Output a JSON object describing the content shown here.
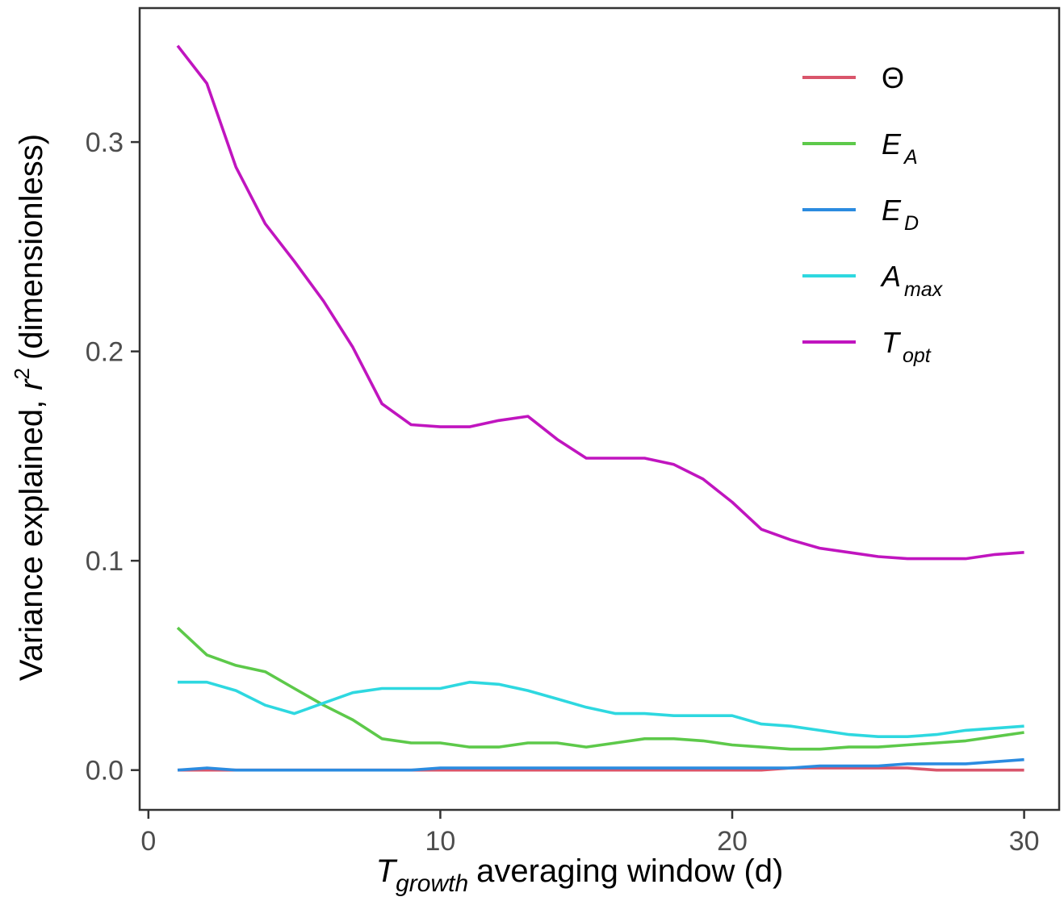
{
  "chart_data": {
    "type": "line",
    "title": "",
    "xlabel": {
      "main": "T",
      "subscript": "growth",
      "rest": "averaging window (d)"
    },
    "ylabel": {
      "before": "Variance explained,",
      "symbol": "r",
      "superscript": "2",
      "after": "(dimensionless)"
    },
    "xlim": [
      -0.3,
      31.2
    ],
    "ylim": [
      -0.019,
      0.364
    ],
    "x_ticks": [
      {
        "value": 0,
        "label": "0"
      },
      {
        "value": 10,
        "label": "10"
      },
      {
        "value": 20,
        "label": "20"
      },
      {
        "value": 30,
        "label": "30"
      }
    ],
    "y_ticks": [
      {
        "value": 0.0,
        "label": "0.0"
      },
      {
        "value": 0.1,
        "label": "0.1"
      },
      {
        "value": 0.2,
        "label": "0.2"
      },
      {
        "value": 0.3,
        "label": "0.3"
      }
    ],
    "grid": false,
    "legend_position": "top-right",
    "x": [
      1,
      2,
      3,
      4,
      5,
      6,
      7,
      8,
      9,
      10,
      11,
      12,
      13,
      14,
      15,
      16,
      17,
      18,
      19,
      20,
      21,
      22,
      23,
      24,
      25,
      26,
      27,
      28,
      29,
      30
    ],
    "series": [
      {
        "name": "Θ",
        "label_main": "Θ",
        "label_sub": "",
        "italic": false,
        "color": "#d9556b",
        "values": [
          0.0,
          0.0,
          0.0,
          0.0,
          0.0,
          0.0,
          0.0,
          0.0,
          0.0,
          0.0,
          0.0,
          0.0,
          0.0,
          0.0,
          0.0,
          0.0,
          0.0,
          0.0,
          0.0,
          0.0,
          0.0,
          0.001,
          0.001,
          0.001,
          0.001,
          0.001,
          0.0,
          0.0,
          0.0,
          0.0
        ]
      },
      {
        "name": "E_A",
        "label_main": "E",
        "label_sub": "A",
        "italic": true,
        "color": "#5dc94a",
        "values": [
          0.068,
          0.055,
          0.05,
          0.047,
          0.039,
          0.031,
          0.024,
          0.015,
          0.013,
          0.013,
          0.011,
          0.011,
          0.013,
          0.013,
          0.011,
          0.013,
          0.015,
          0.015,
          0.014,
          0.012,
          0.011,
          0.01,
          0.01,
          0.011,
          0.011,
          0.012,
          0.013,
          0.014,
          0.016,
          0.018
        ]
      },
      {
        "name": "E_D",
        "label_main": "E",
        "label_sub": "D",
        "italic": true,
        "color": "#2b8be0",
        "values": [
          0.0,
          0.001,
          0.0,
          0.0,
          0.0,
          0.0,
          0.0,
          0.0,
          0.0,
          0.001,
          0.001,
          0.001,
          0.001,
          0.001,
          0.001,
          0.001,
          0.001,
          0.001,
          0.001,
          0.001,
          0.001,
          0.001,
          0.002,
          0.002,
          0.002,
          0.003,
          0.003,
          0.003,
          0.004,
          0.005
        ]
      },
      {
        "name": "A_max",
        "label_main": "A",
        "label_sub": "max",
        "italic": true,
        "color": "#2ed8e0",
        "values": [
          0.042,
          0.042,
          0.038,
          0.031,
          0.027,
          0.032,
          0.037,
          0.039,
          0.039,
          0.039,
          0.042,
          0.041,
          0.038,
          0.034,
          0.03,
          0.027,
          0.027,
          0.026,
          0.026,
          0.026,
          0.022,
          0.021,
          0.019,
          0.017,
          0.016,
          0.016,
          0.017,
          0.019,
          0.02,
          0.021
        ]
      },
      {
        "name": "T_opt",
        "label_main": "T",
        "label_sub": "opt",
        "italic": true,
        "color": "#c015bf",
        "values": [
          0.346,
          0.328,
          0.288,
          0.261,
          0.243,
          0.224,
          0.202,
          0.175,
          0.165,
          0.164,
          0.164,
          0.167,
          0.169,
          0.158,
          0.149,
          0.149,
          0.149,
          0.146,
          0.139,
          0.128,
          0.115,
          0.11,
          0.106,
          0.104,
          0.102,
          0.101,
          0.101,
          0.101,
          0.103,
          0.104
        ]
      }
    ]
  }
}
